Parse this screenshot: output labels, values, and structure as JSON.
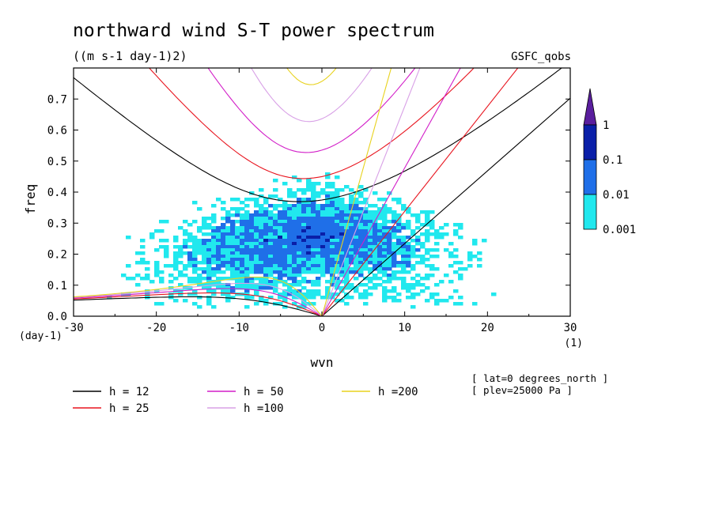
{
  "chart_data": {
    "type": "heatmap",
    "title": "northward wind S-T power spectrum",
    "subtitle": "((m s-1 day-1)2)",
    "source_label": "GSFC_qobs",
    "xlabel": "wvn",
    "ylabel": "freq",
    "x_unit": "(1)",
    "y_unit": "(day-1)",
    "xlim": [
      -30,
      30
    ],
    "ylim": [
      0,
      0.8
    ],
    "xticks": [
      "-30",
      "-20",
      "-10",
      "0",
      "10",
      "20",
      "30"
    ],
    "yticks": [
      "0.0",
      "0.1",
      "0.2",
      "0.3",
      "0.4",
      "0.5",
      "0.6",
      "0.7"
    ],
    "colorbar": {
      "levels": [
        "1",
        "0.1",
        "0.01",
        "0.001"
      ],
      "colors": [
        "#5a1e9e",
        "#0a1fa8",
        "#1f6fe8",
        "#21e8ee"
      ]
    },
    "dispersion_curves": [
      {
        "label": "h = 12",
        "h": 12,
        "color": "#000000"
      },
      {
        "label": "h = 25",
        "h": 25,
        "color": "#e8141e"
      },
      {
        "label": "h = 50",
        "h": 50,
        "color": "#d21ec8"
      },
      {
        "label": "h =100",
        "h": 100,
        "color": "#d8a0e6"
      },
      {
        "label": "h =200",
        "h": 200,
        "color": "#e8d21e"
      }
    ],
    "annotations": [
      "[ lat=0 degrees_north ]",
      "[ plev=25000 Pa ]"
    ]
  }
}
